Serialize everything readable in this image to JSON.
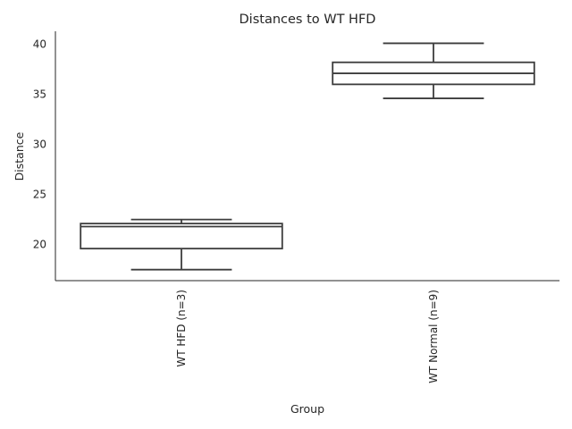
{
  "chart_data": {
    "type": "box",
    "title": "Distances to WT HFD",
    "xlabel": "Group",
    "ylabel": "Distance",
    "categories": [
      "WT HFD (n=3)",
      "WT Normal (n=9)"
    ],
    "boxes": [
      {
        "category": "WT HFD (n=3)",
        "whisker_low": 17.5,
        "q1": 19.6,
        "median": 21.8,
        "q3": 22.1,
        "whisker_high": 22.5
      },
      {
        "category": "WT Normal (n=9)",
        "whisker_low": 34.6,
        "q1": 36.0,
        "median": 37.1,
        "q3": 38.2,
        "whisker_high": 40.1
      }
    ],
    "ylim": [
      16.4,
      41.3
    ],
    "yticks": [
      20,
      25,
      30,
      35,
      40
    ],
    "grid": false,
    "legend": "none",
    "colors": {
      "box_edge": "#3d3d3d",
      "box_fill": "#ffffff",
      "spine": "#262626"
    }
  }
}
